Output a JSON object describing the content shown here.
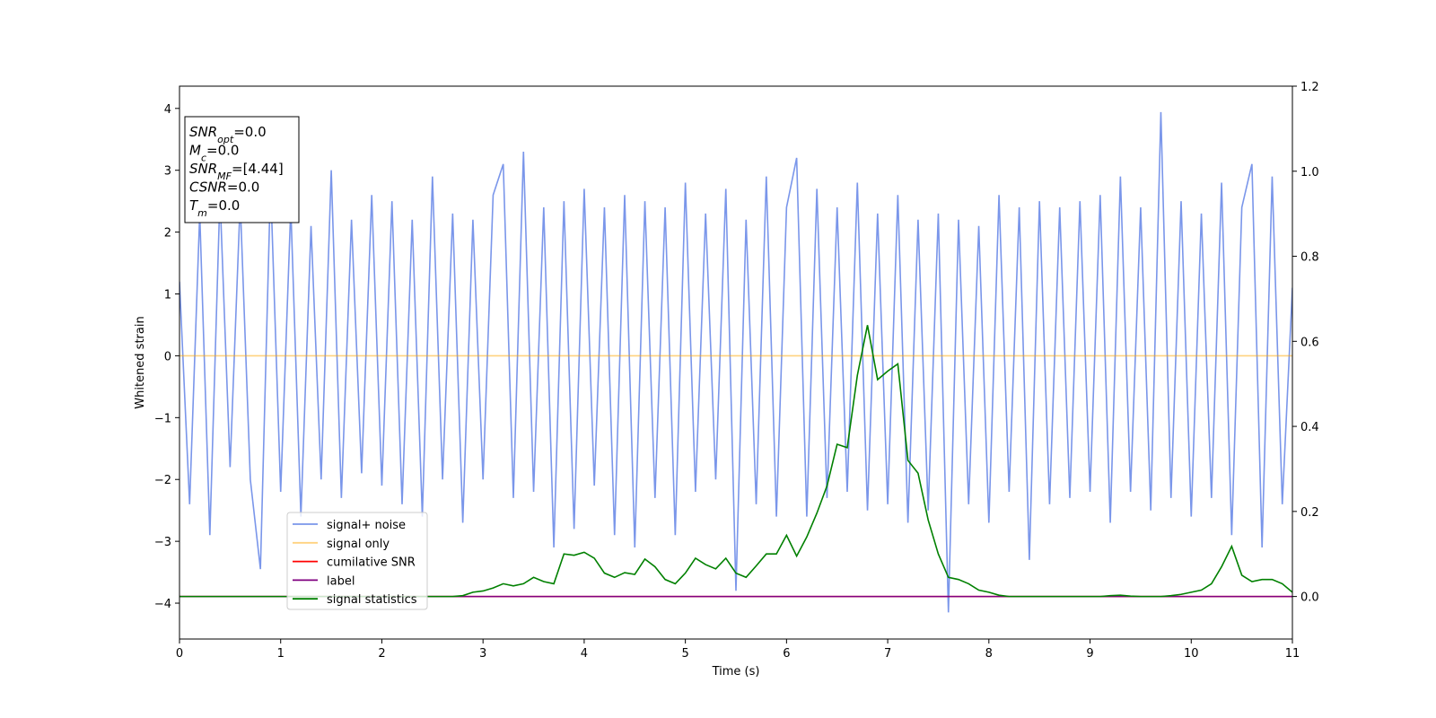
{
  "chart_data": {
    "type": "line",
    "xlabel": "Time (s)",
    "ylabel": "Whitened strain",
    "x": [
      0.0,
      0.1,
      0.2,
      0.3,
      0.4,
      0.5,
      0.6,
      0.7,
      0.8,
      0.9,
      1.0,
      1.1,
      1.2,
      1.3,
      1.4,
      1.5,
      1.6,
      1.7,
      1.8,
      1.9,
      2.0,
      2.1,
      2.2,
      2.3,
      2.4,
      2.5,
      2.6,
      2.7,
      2.8,
      2.9,
      3.0,
      3.1,
      3.2,
      3.3,
      3.4,
      3.5,
      3.6,
      3.7,
      3.8,
      3.9,
      4.0,
      4.1,
      4.2,
      4.3,
      4.4,
      4.5,
      4.6,
      4.7,
      4.8,
      4.9,
      5.0,
      5.1,
      5.2,
      5.3,
      5.4,
      5.5,
      5.6,
      5.7,
      5.8,
      5.9,
      6.0,
      6.1,
      6.2,
      6.3,
      6.4,
      6.5,
      6.6,
      6.7,
      6.8,
      6.9,
      7.0,
      7.1,
      7.2,
      7.3,
      7.4,
      7.5,
      7.6,
      7.7,
      7.8,
      7.9,
      8.0,
      8.1,
      8.2,
      8.3,
      8.4,
      8.5,
      8.6,
      8.7,
      8.8,
      8.9,
      9.0,
      9.1,
      9.2,
      9.3,
      9.4,
      9.5,
      9.6,
      9.7,
      9.8,
      9.9,
      10.0,
      10.1,
      10.2,
      10.3,
      10.4,
      10.5,
      10.6,
      10.7,
      10.8,
      10.9,
      11.0
    ],
    "series": [
      {
        "name": "signal+ noise",
        "color": "#4169e1",
        "alpha": 0.7,
        "axis": "y",
        "values": [
          1.2,
          -2.4,
          2.3,
          -2.9,
          2.6,
          -1.8,
          2.5,
          -2.0,
          -3.45,
          2.8,
          -2.2,
          2.4,
          -2.6,
          2.1,
          -2.0,
          3.0,
          -2.3,
          2.2,
          -1.9,
          2.6,
          -2.1,
          2.5,
          -2.4,
          2.2,
          -2.6,
          2.9,
          -2.0,
          2.3,
          -2.7,
          2.2,
          -2.0,
          2.6,
          3.1,
          -2.3,
          3.3,
          -2.2,
          2.4,
          -3.1,
          2.5,
          -2.8,
          2.7,
          -2.1,
          2.4,
          -2.9,
          2.6,
          -3.1,
          2.5,
          -2.3,
          2.4,
          -2.9,
          2.8,
          -2.2,
          2.3,
          -2.0,
          2.7,
          -3.8,
          2.2,
          -2.4,
          2.9,
          -2.6,
          2.4,
          3.2,
          -2.6,
          2.7,
          -2.3,
          2.4,
          -2.2,
          2.8,
          -2.5,
          2.3,
          -2.4,
          2.6,
          -2.7,
          2.2,
          -2.5,
          2.3,
          -4.15,
          2.2,
          -2.4,
          2.1,
          -2.7,
          2.6,
          -2.2,
          2.4,
          -3.3,
          2.5,
          -2.4,
          2.4,
          -2.3,
          2.5,
          -2.2,
          2.6,
          -2.7,
          2.9,
          -2.2,
          2.4,
          -2.5,
          3.94,
          -2.3,
          2.5,
          -2.6,
          2.3,
          -2.3,
          2.8,
          -2.9,
          2.4,
          3.1,
          -3.1,
          2.9,
          -2.4,
          1.1
        ]
      },
      {
        "name": "signal only",
        "color": "#ffa500",
        "alpha": 0.5,
        "axis": "y",
        "x": [
          0,
          11
        ],
        "values": [
          0,
          0
        ]
      },
      {
        "name": "cumilative SNR",
        "color": "#ff0000",
        "alpha": 1,
        "axis": "y2",
        "x": [
          0,
          11
        ],
        "values": [
          0,
          0
        ]
      },
      {
        "name": "label",
        "color": "#800080",
        "alpha": 1,
        "axis": "y2",
        "x": [
          0,
          11
        ],
        "values": [
          0,
          0
        ]
      },
      {
        "name": "signal statistics",
        "color": "#008000",
        "alpha": 1,
        "axis": "y2",
        "values": [
          0,
          0,
          0,
          0,
          0,
          0,
          0,
          0,
          0,
          0,
          0,
          0,
          0,
          0,
          0,
          0,
          0,
          0,
          0,
          0,
          0,
          0,
          0,
          0,
          0,
          0,
          0,
          0,
          0.002,
          0.01,
          0.013,
          0.02,
          0.03,
          0.025,
          0.03,
          0.045,
          0.035,
          0.03,
          0.1,
          0.097,
          0.104,
          0.09,
          0.055,
          0.045,
          0.056,
          0.052,
          0.088,
          0.07,
          0.04,
          0.03,
          0.055,
          0.09,
          0.075,
          0.065,
          0.09,
          0.055,
          0.045,
          0.072,
          0.1,
          0.1,
          0.144,
          0.095,
          0.14,
          0.196,
          0.26,
          0.358,
          0.35,
          0.52,
          0.638,
          0.51,
          0.53,
          0.547,
          0.32,
          0.29,
          0.18,
          0.1,
          0.045,
          0.04,
          0.03,
          0.015,
          0.01,
          0.003,
          0,
          0,
          0,
          0,
          0,
          0,
          0,
          0,
          0,
          0,
          0.002,
          0.003,
          0.001,
          0,
          0,
          0,
          0.002,
          0.005,
          0.01,
          0.015,
          0.03,
          0.07,
          0.118,
          0.05,
          0.035,
          0.04,
          0.04,
          0.03,
          0.01
        ]
      }
    ],
    "xlim": [
      0,
      11
    ],
    "xticks": [
      0,
      1,
      2,
      3,
      4,
      5,
      6,
      7,
      8,
      9,
      10,
      11
    ],
    "ylim": [
      -4.58,
      4.36
    ],
    "yticks": [
      {
        "value": -4,
        "label": "−4"
      },
      {
        "value": -3,
        "label": "−3"
      },
      {
        "value": -2,
        "label": "−2"
      },
      {
        "value": -1,
        "label": "−1"
      },
      0,
      1,
      2,
      3,
      4
    ],
    "y2lim": [
      -0.1,
      1.2
    ],
    "y2ticks": [
      {
        "value": 0,
        "label": "0.0"
      },
      0.2,
      0.4,
      0.6,
      0.8,
      {
        "value": 1,
        "label": "1.0"
      },
      1.2
    ],
    "legend_loc": "lower left",
    "annotation": [
      {
        "main": "SNR",
        "sub": "opt",
        "text": "=0.0"
      },
      {
        "main": "M",
        "sub": "c",
        "text": "=0.0"
      },
      {
        "main": "SNR",
        "sub": "MF",
        "text": "=[4.44]"
      },
      {
        "main": "CSNR",
        "text": "=0.0"
      },
      {
        "main": "T",
        "sub": "m",
        "text": "=0.0"
      }
    ]
  }
}
